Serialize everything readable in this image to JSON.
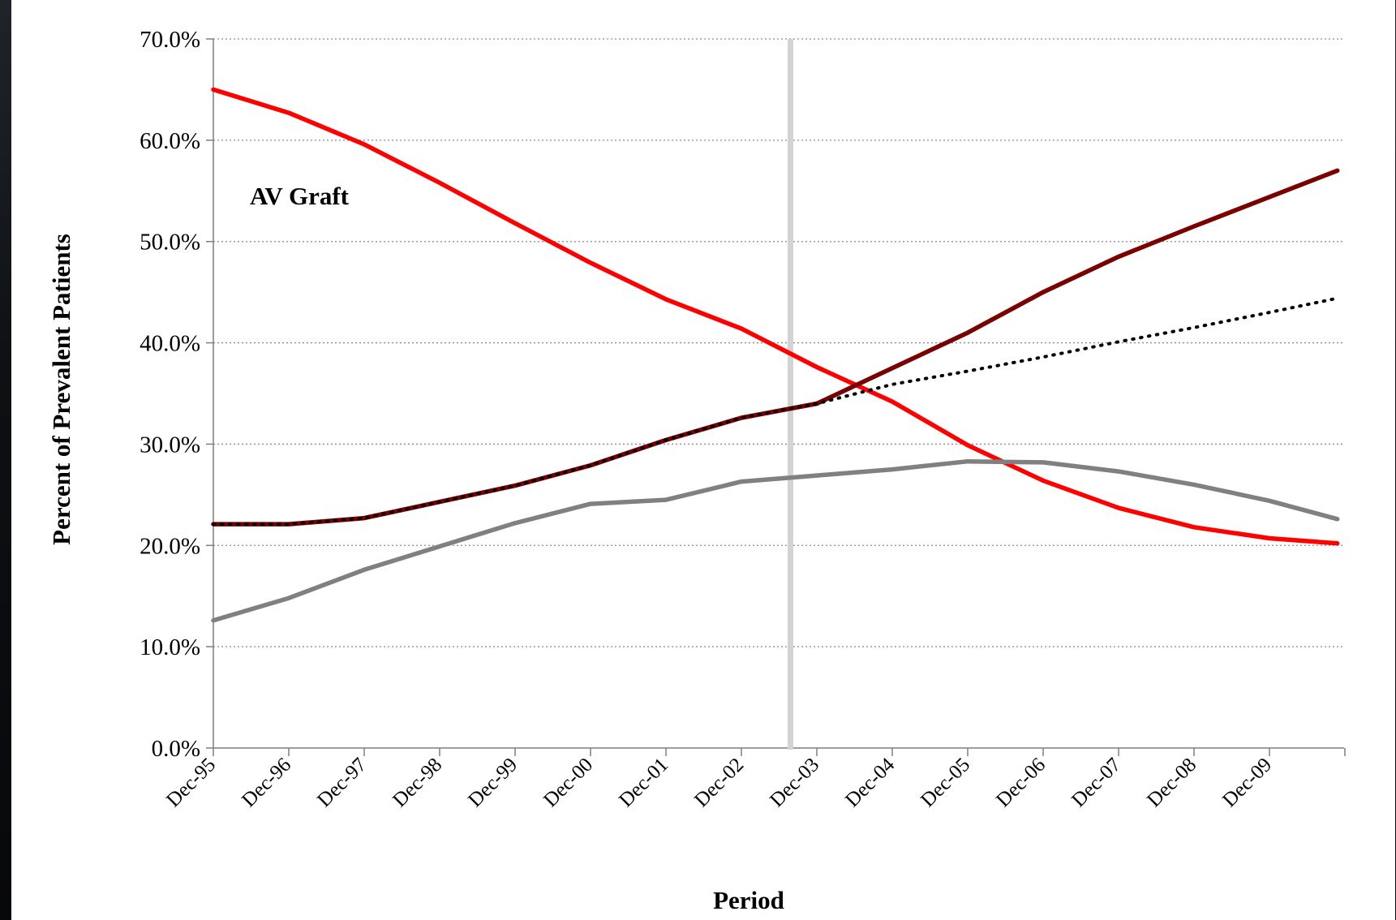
{
  "chart_data": {
    "type": "line",
    "xlabel": "Period",
    "ylabel": "Percent of Prevalent Patients",
    "annotation": "AV Graft",
    "ylim": [
      0,
      70
    ],
    "y_ticks": [
      "0.0%",
      "10.0%",
      "20.0%",
      "30.0%",
      "40.0%",
      "50.0%",
      "60.0%",
      "70.0%"
    ],
    "grid": "horizontal dotted",
    "categories": [
      "Dec-95",
      "Dec-96",
      "Dec-97",
      "Dec-98",
      "Dec-99",
      "Dec-00",
      "Dec-01",
      "Dec-02",
      "Dec-03",
      "Dec-04",
      "Dec-05",
      "Dec-06",
      "Dec-07",
      "Dec-08",
      "Dec-09"
    ],
    "reference_line_x": 7.65,
    "series": [
      {
        "color": "#ff0000",
        "style": "solid",
        "x": [
          0,
          1,
          2,
          3,
          4,
          5,
          6,
          7,
          8,
          9,
          10,
          11,
          12,
          13,
          14,
          14.9
        ],
        "values": [
          65.0,
          62.7,
          59.6,
          55.8,
          51.8,
          47.9,
          44.3,
          41.4,
          37.6,
          34.2,
          29.9,
          26.4,
          23.7,
          21.8,
          20.7,
          20.2
        ]
      },
      {
        "color": "#7a0000",
        "style": "solid",
        "x": [
          0,
          1,
          2,
          3,
          4,
          5,
          6,
          7,
          8,
          9,
          10,
          11,
          12,
          13,
          14,
          14.9
        ],
        "values": [
          22.1,
          22.1,
          22.7,
          24.3,
          25.9,
          27.9,
          30.4,
          32.6,
          34.0,
          37.5,
          41.0,
          45.0,
          48.5,
          51.5,
          54.4,
          57.0
        ]
      },
      {
        "color": "#000000",
        "style": "dotted",
        "x": [
          0,
          1,
          2,
          3,
          4,
          5,
          6,
          7,
          8,
          9,
          10,
          11,
          12,
          13,
          14,
          14.9
        ],
        "values": [
          22.1,
          22.1,
          22.7,
          24.3,
          25.9,
          27.9,
          30.4,
          32.6,
          34.0,
          35.9,
          37.2,
          38.6,
          40.1,
          41.5,
          43.0,
          44.4
        ]
      },
      {
        "color": "#808080",
        "style": "solid",
        "x": [
          0,
          1,
          2,
          3,
          4,
          5,
          6,
          7,
          8,
          9,
          10,
          11,
          12,
          13,
          14,
          14.9
        ],
        "values": [
          12.6,
          14.8,
          17.6,
          19.9,
          22.2,
          24.1,
          24.5,
          26.3,
          26.9,
          27.5,
          28.3,
          28.2,
          27.3,
          26.0,
          24.4,
          22.6
        ]
      }
    ]
  }
}
